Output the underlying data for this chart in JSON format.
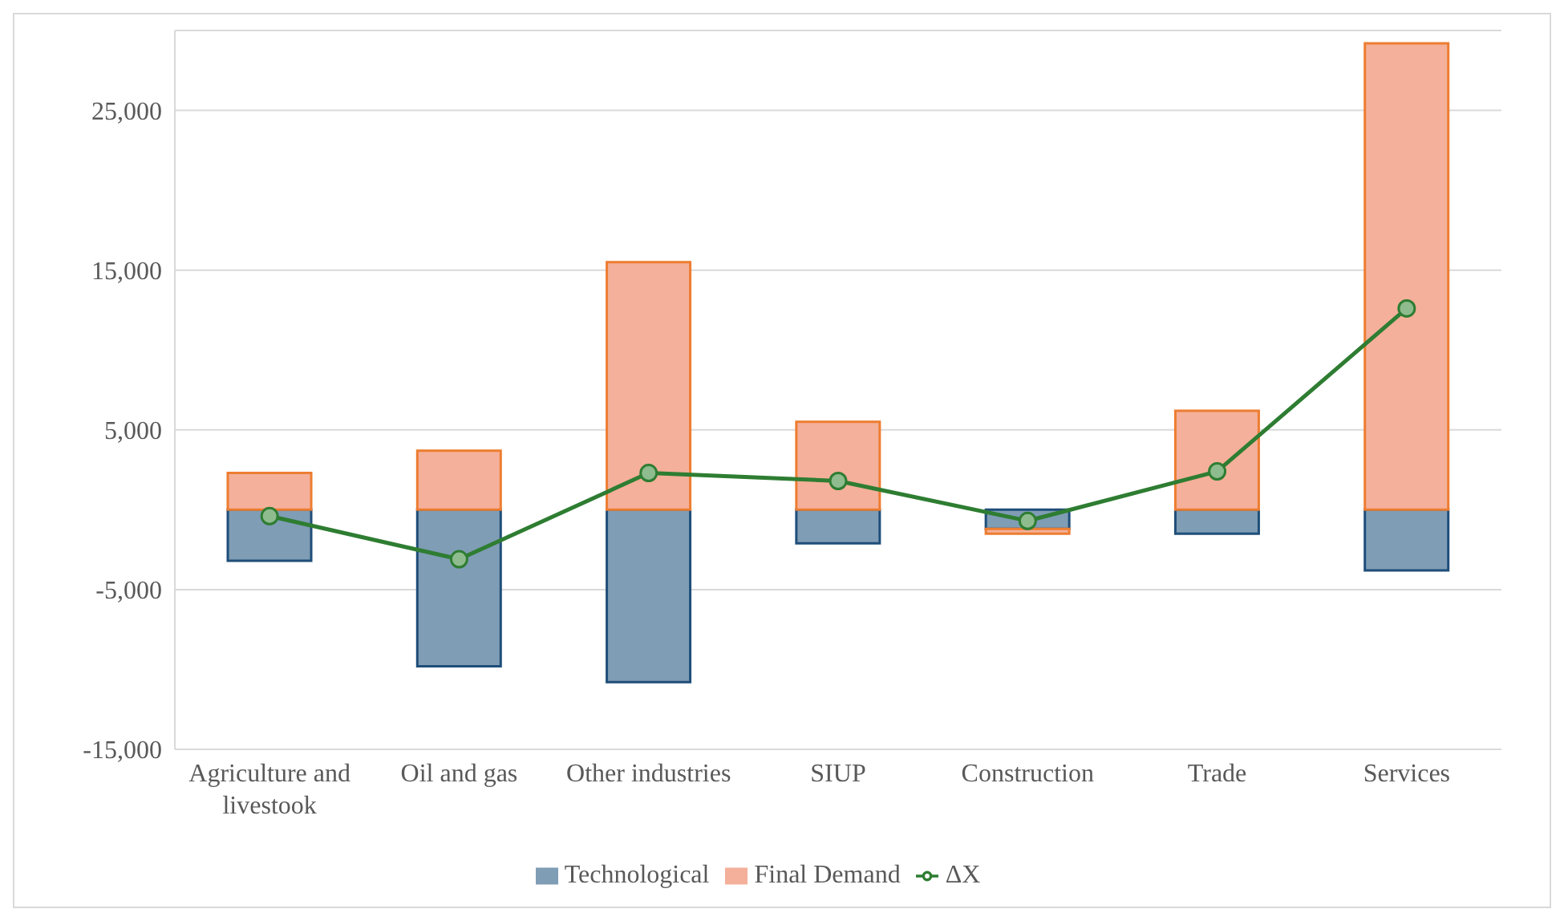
{
  "chart_data": {
    "type": "bar",
    "stacked": true,
    "categories": [
      "Agriculture and livestook",
      "Oil and gas",
      "Other industries",
      "SIUP",
      "Construction",
      "Trade",
      "Services"
    ],
    "series": [
      {
        "name": "Technological",
        "color": "#7f9db5",
        "values": [
          -3200,
          -9800,
          -10800,
          -2100,
          -1200,
          -1500,
          -3800
        ]
      },
      {
        "name": "Final Demand",
        "color": "#f4b09a",
        "values": [
          2300,
          3700,
          15500,
          5500,
          -300,
          6200,
          29200
        ]
      },
      {
        "name": "ΔX",
        "type": "line",
        "color": "#2e7d32",
        "values": [
          -400,
          -3100,
          2300,
          1800,
          -700,
          2400,
          12600
        ]
      }
    ],
    "ylim": [
      -15000,
      30000
    ],
    "yticks": [
      {
        "value": 25000,
        "label": "25,000"
      },
      {
        "value": 15000,
        "label": "15,000"
      },
      {
        "value": 5000,
        "label": "5,000"
      },
      {
        "value": -5000,
        "label": "-5,000"
      },
      {
        "value": -15000,
        "label": "-15,000"
      }
    ],
    "grid": "y",
    "legend": "bottom",
    "marker": "circle"
  }
}
